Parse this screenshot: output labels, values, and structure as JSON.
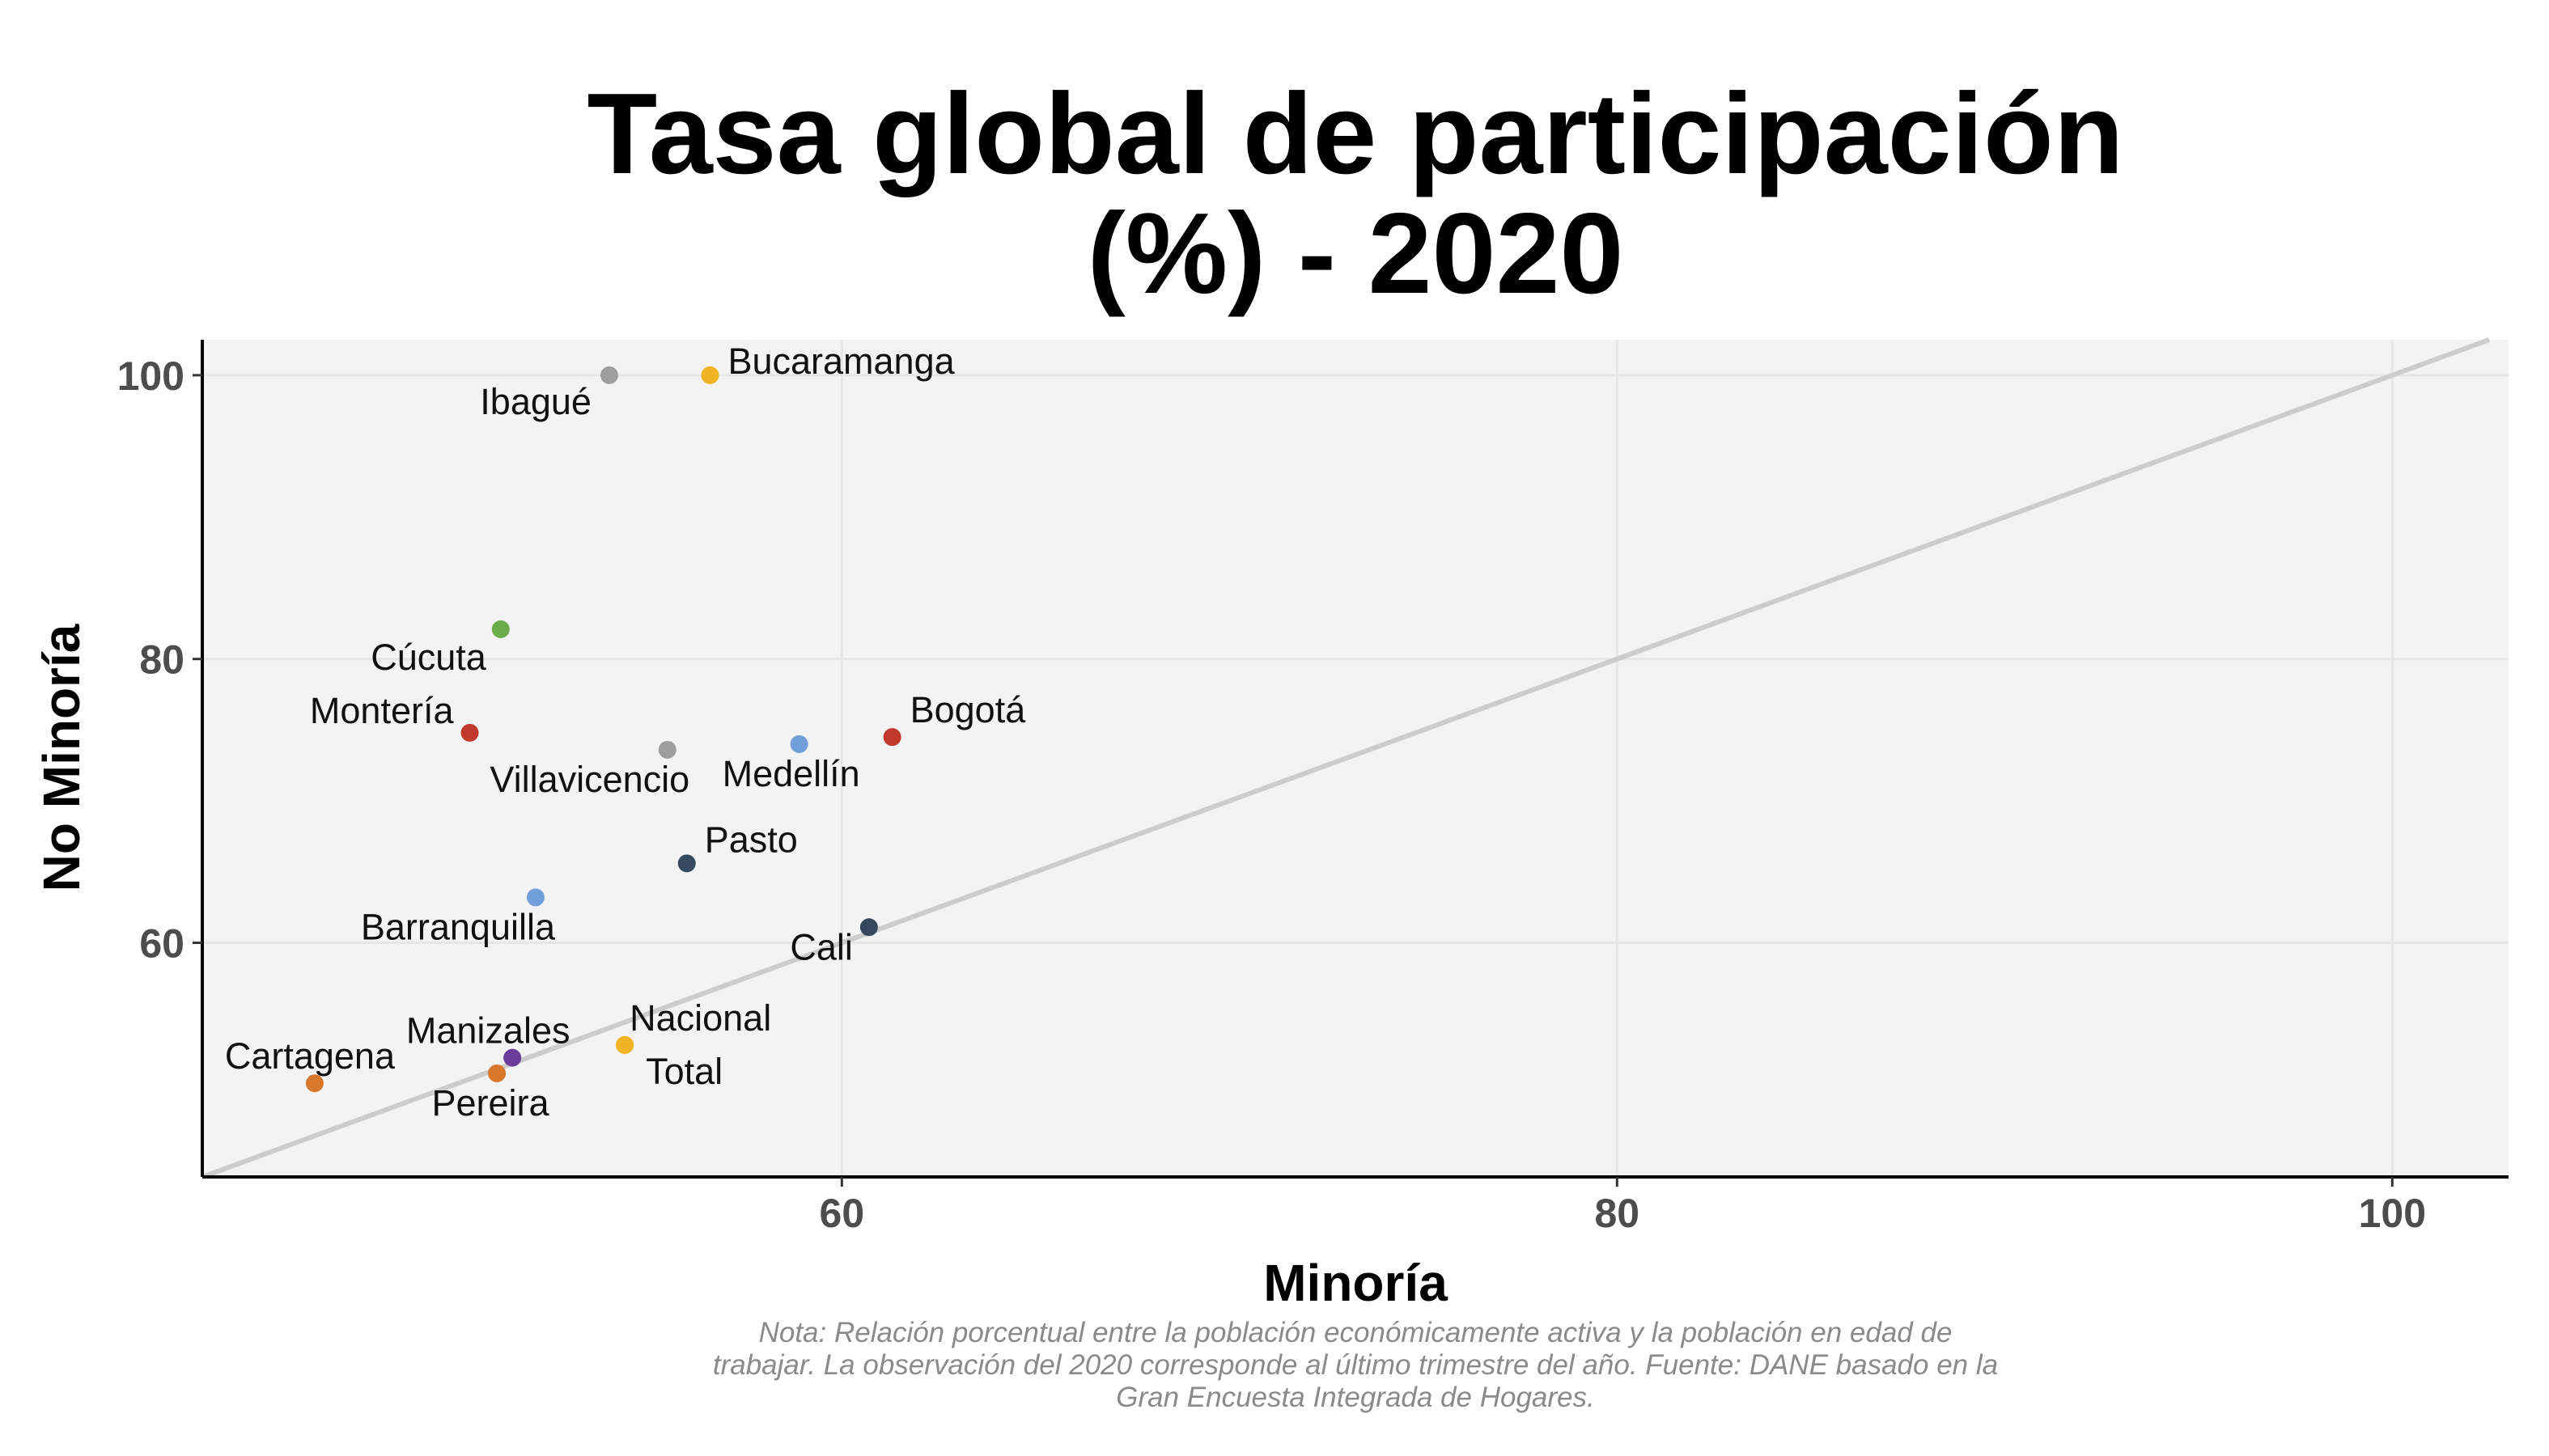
{
  "chart_data": {
    "type": "scatter",
    "title_lines": [
      "Tasa global de participación",
      "(%) - 2020"
    ],
    "xlabel": "Minoría",
    "ylabel": "No Minoría",
    "xlim": [
      43.5,
      103
    ],
    "ylim": [
      43.5,
      102.5
    ],
    "x_ticks": [
      60,
      80,
      100
    ],
    "y_ticks": [
      60,
      80,
      100
    ],
    "grid": true,
    "reference_line": "y = x",
    "points": [
      {
        "label": "Bucaramanga",
        "x": 56.6,
        "y": 100.0,
        "color": "#F0B323"
      },
      {
        "label": "Ibagué",
        "x": 54.0,
        "y": 100.0,
        "color": "#9E9E9E"
      },
      {
        "label": "Cúcuta",
        "x": 51.2,
        "y": 82.1,
        "color": "#6AAB4B"
      },
      {
        "label": "Montería",
        "x": 50.4,
        "y": 74.8,
        "color": "#C0392B"
      },
      {
        "label": "Bogotá",
        "x": 61.3,
        "y": 74.5,
        "color": "#C0392B"
      },
      {
        "label": "Medellín",
        "x": 58.9,
        "y": 74.0,
        "color": "#729FD9"
      },
      {
        "label": "Villavicencio",
        "x": 55.5,
        "y": 73.6,
        "color": "#9E9E9E"
      },
      {
        "label": "Pasto",
        "x": 56.0,
        "y": 65.6,
        "color": "#34495E"
      },
      {
        "label": "Barranquilla",
        "x": 52.1,
        "y": 63.2,
        "color": "#729FD9"
      },
      {
        "label": "Cali",
        "x": 60.7,
        "y": 61.1,
        "color": "#34495E"
      },
      {
        "label": "Nacional",
        "x": 54.4,
        "y": 52.8,
        "color": "#F0B323"
      },
      {
        "label": "Total",
        "x": 54.4,
        "y": 52.8,
        "color": "#F0B323"
      },
      {
        "label": "Manizales",
        "x": 51.5,
        "y": 51.9,
        "color": "#6A3D9A"
      },
      {
        "label": "Pereira",
        "x": 51.1,
        "y": 50.8,
        "color": "#D9782D"
      },
      {
        "label": "Cartagena",
        "x": 46.4,
        "y": 50.1,
        "color": "#D9782D"
      }
    ]
  },
  "note_lines": [
    "Nota: Relación porcentual entre la población económicamente activa y la población en edad de",
    "trabajar. La observación del 2020 corresponde al último trimestre del año. Fuente: DANE basado en la",
    "Gran Encuesta Integrada de Hogares."
  ],
  "colors": {
    "panel": "#F3F3F3",
    "grid": "#E6E6E6",
    "reference_line": "#CCCCCC",
    "axis": "#000000"
  }
}
